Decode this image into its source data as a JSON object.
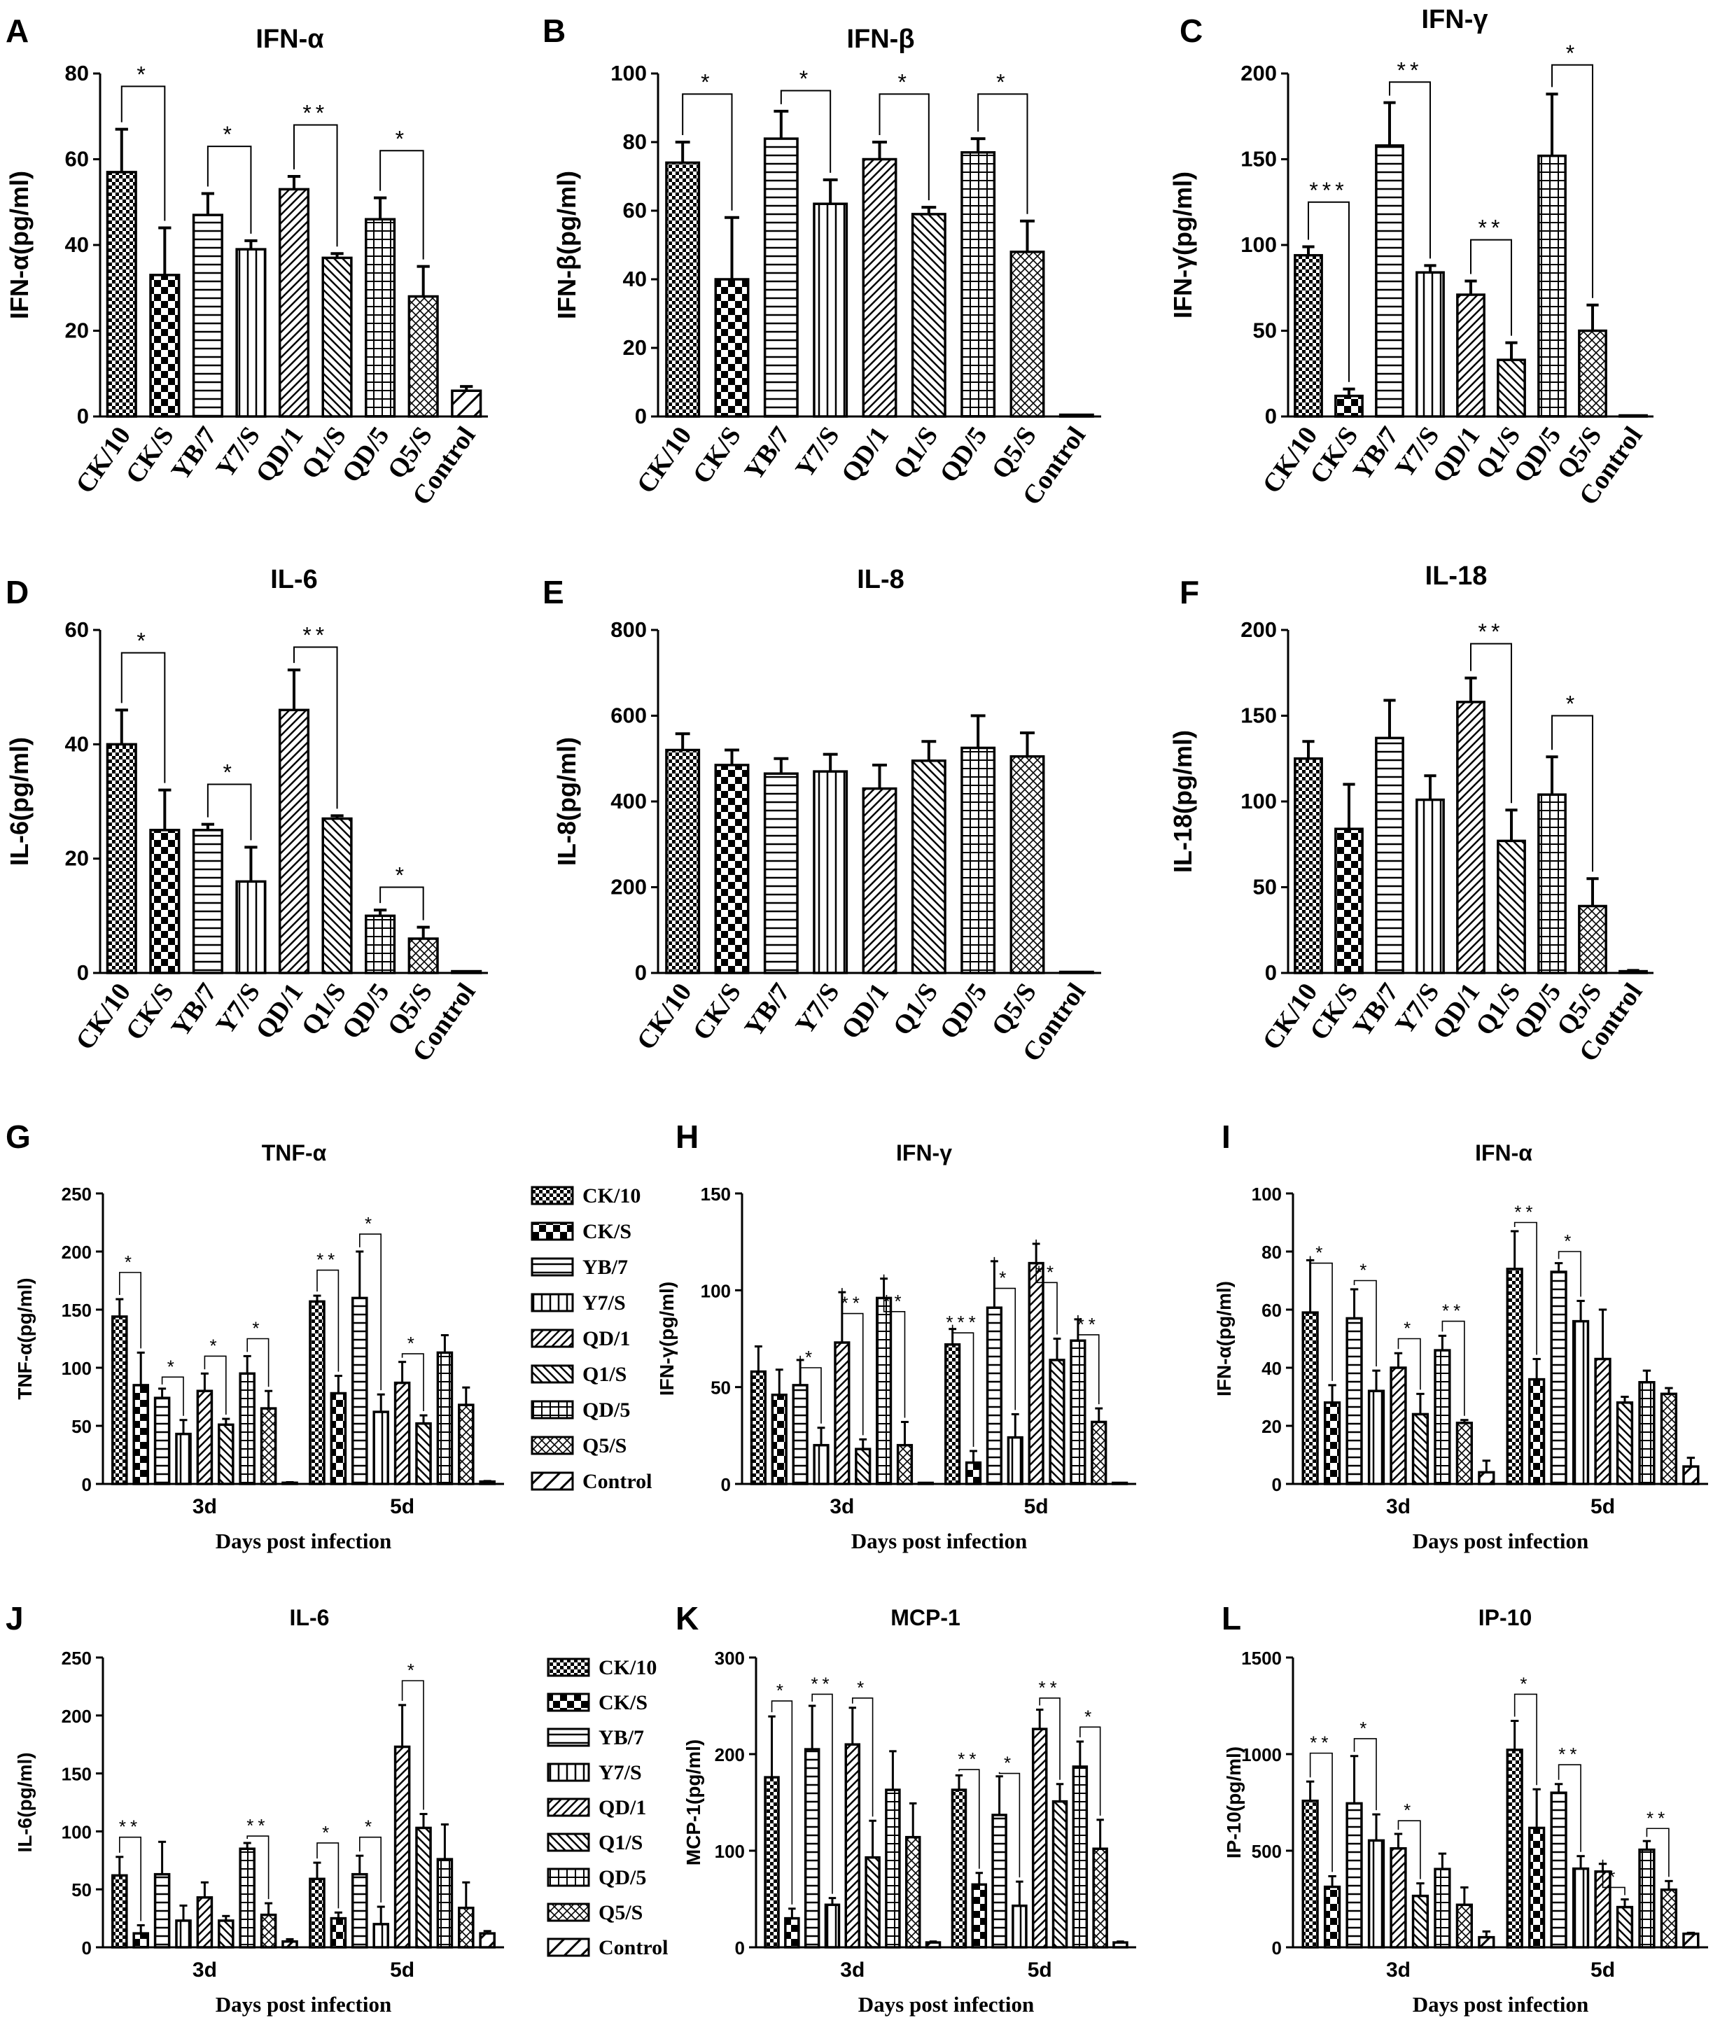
{
  "figure": {
    "categories": [
      "CK/10",
      "CK/S",
      "YB/7",
      "Y7/S",
      "QD/1",
      "Q1/S",
      "QD/5",
      "Q5/S",
      "Control"
    ],
    "groups": [
      "3d",
      "5d"
    ],
    "xlabel_time": "Days post infection",
    "legend": [
      "CK/10",
      "CK/S",
      "YB/7",
      "Y7/S",
      "QD/1",
      "Q1/S",
      "QD/5",
      "Q5/S",
      "Control"
    ]
  },
  "chart_data": [
    {
      "id": "A",
      "letter": "A",
      "type": "bar",
      "title": "IFN-α",
      "ylabel": "IFN-α(pg/ml)",
      "ylim": [
        0,
        80
      ],
      "yticks": [
        0,
        20,
        40,
        60,
        80
      ],
      "values": [
        57,
        33,
        47,
        39,
        53,
        37,
        46,
        28,
        6
      ],
      "errors": [
        10,
        11,
        5,
        2,
        3,
        1,
        5,
        7,
        1
      ],
      "sig": [
        {
          "from": 0,
          "to": 1,
          "label": "*",
          "y": 77
        },
        {
          "from": 2,
          "to": 3,
          "label": "*",
          "y": 63
        },
        {
          "from": 4,
          "to": 5,
          "label": "**",
          "y": 68
        },
        {
          "from": 6,
          "to": 7,
          "label": "*",
          "y": 62
        }
      ]
    },
    {
      "id": "B",
      "letter": "B",
      "type": "bar",
      "title": "IFN-β",
      "ylabel": "IFN-β(pg/ml)",
      "ylim": [
        0,
        100
      ],
      "yticks": [
        0,
        20,
        40,
        60,
        80,
        100
      ],
      "values": [
        74,
        40,
        81,
        62,
        75,
        59,
        77,
        48,
        0.5
      ],
      "errors": [
        6,
        18,
        8,
        7,
        5,
        2,
        4,
        9,
        0.2
      ],
      "sig": [
        {
          "from": 0,
          "to": 1,
          "label": "*",
          "y": 94
        },
        {
          "from": 2,
          "to": 3,
          "label": "*",
          "y": 95
        },
        {
          "from": 4,
          "to": 5,
          "label": "*",
          "y": 94
        },
        {
          "from": 6,
          "to": 7,
          "label": "*",
          "y": 94
        }
      ]
    },
    {
      "id": "C",
      "letter": "C",
      "type": "bar",
      "title": "IFN-γ",
      "ylabel": "IFN-γ(pg/ml)",
      "ylim": [
        0,
        200
      ],
      "yticks": [
        0,
        50,
        100,
        150,
        200
      ],
      "values": [
        94,
        12,
        158,
        84,
        71,
        33,
        152,
        50,
        0.5
      ],
      "errors": [
        5,
        4,
        25,
        4,
        8,
        10,
        36,
        15,
        0.2
      ],
      "sig": [
        {
          "from": 0,
          "to": 1,
          "label": "***",
          "y": 125
        },
        {
          "from": 2,
          "to": 3,
          "label": "**",
          "y": 195
        },
        {
          "from": 4,
          "to": 5,
          "label": "**",
          "y": 103
        },
        {
          "from": 6,
          "to": 7,
          "label": "*",
          "y": 205
        }
      ]
    },
    {
      "id": "D",
      "letter": "D",
      "type": "bar",
      "title": "IL-6",
      "ylabel": "IL-6(pg/ml)",
      "ylim": [
        0,
        60
      ],
      "yticks": [
        0,
        20,
        40,
        60
      ],
      "values": [
        40,
        25,
        25,
        16,
        46,
        27,
        10,
        6,
        0.3
      ],
      "errors": [
        6,
        7,
        1,
        6,
        7,
        0.5,
        1,
        2,
        0.1
      ],
      "sig": [
        {
          "from": 0,
          "to": 1,
          "label": "*",
          "y": 56
        },
        {
          "from": 2,
          "to": 3,
          "label": "*",
          "y": 33
        },
        {
          "from": 4,
          "to": 5,
          "label": "**",
          "y": 57
        },
        {
          "from": 6,
          "to": 7,
          "label": "*",
          "y": 15
        }
      ]
    },
    {
      "id": "E",
      "letter": "E",
      "type": "bar",
      "title": "IL-8",
      "ylabel": "IL-8(pg/ml)",
      "ylim": [
        0,
        800
      ],
      "yticks": [
        0,
        200,
        400,
        600,
        800
      ],
      "values": [
        520,
        485,
        465,
        470,
        430,
        495,
        525,
        505,
        0
      ],
      "errors": [
        38,
        35,
        35,
        40,
        55,
        45,
        75,
        55,
        0
      ],
      "sig": []
    },
    {
      "id": "F",
      "letter": "F",
      "type": "bar",
      "title": "IL-18",
      "ylabel": "IL-18(pg/ml)",
      "ylim": [
        0,
        200
      ],
      "yticks": [
        0,
        50,
        100,
        150,
        200
      ],
      "values": [
        125,
        84,
        137,
        101,
        158,
        77,
        104,
        39,
        1
      ],
      "errors": [
        10,
        26,
        22,
        14,
        14,
        18,
        22,
        16,
        0.5
      ],
      "sig": [
        {
          "from": 4,
          "to": 5,
          "label": "**",
          "y": 192
        },
        {
          "from": 6,
          "to": 7,
          "label": "*",
          "y": 150
        }
      ]
    },
    {
      "id": "G",
      "letter": "G",
      "type": "grouped-bar",
      "title": "TNF-α",
      "ylabel": "TNF-α(pg/ml)",
      "ylim": [
        0,
        250
      ],
      "yticks": [
        0,
        50,
        100,
        150,
        200,
        250
      ],
      "series_values": [
        [
          144,
          85,
          74,
          43,
          80,
          51,
          95,
          65,
          1
        ],
        [
          157,
          78,
          160,
          62,
          87,
          52,
          113,
          68,
          2
        ]
      ],
      "series_errors": [
        [
          15,
          28,
          8,
          12,
          15,
          5,
          15,
          15,
          0.5
        ],
        [
          5,
          15,
          40,
          15,
          18,
          7,
          15,
          15,
          0.5
        ]
      ],
      "sig": [
        [
          {
            "from": 0,
            "to": 1,
            "label": "*",
            "y": 182
          },
          {
            "from": 2,
            "to": 3,
            "label": "*",
            "y": 92
          },
          {
            "from": 4,
            "to": 5,
            "label": "*",
            "y": 110
          },
          {
            "from": 6,
            "to": 7,
            "label": "*",
            "y": 125
          }
        ],
        [
          {
            "from": 0,
            "to": 1,
            "label": "**",
            "y": 184
          },
          {
            "from": 2,
            "to": 3,
            "label": "*",
            "y": 215
          },
          {
            "from": 4,
            "to": 5,
            "label": "*",
            "y": 112
          }
        ]
      ]
    },
    {
      "id": "H",
      "letter": "H",
      "type": "grouped-bar",
      "title": "IFN-γ",
      "ylabel": "IFN-γ(pg/ml)",
      "ylim": [
        0,
        150
      ],
      "yticks": [
        0,
        50,
        100,
        150
      ],
      "series_values": [
        [
          58,
          46,
          51,
          20,
          73,
          18,
          96,
          20,
          0.5
        ],
        [
          72,
          11,
          91,
          24,
          114,
          64,
          74,
          32,
          0.5
        ]
      ],
      "series_errors": [
        [
          13,
          13,
          13,
          9,
          26,
          5,
          10,
          12,
          0.2
        ],
        [
          8,
          6,
          24,
          12,
          10,
          11,
          11,
          7,
          0.2
        ]
      ],
      "sig": [
        [
          {
            "from": 2,
            "to": 3,
            "label": "*",
            "y": 60
          },
          {
            "from": 4,
            "to": 5,
            "label": "**",
            "y": 88
          },
          {
            "from": 6,
            "to": 7,
            "label": "**",
            "y": 89
          }
        ],
        [
          {
            "from": 0,
            "to": 1,
            "label": "***",
            "y": 78
          },
          {
            "from": 2,
            "to": 3,
            "label": "*",
            "y": 101
          },
          {
            "from": 4,
            "to": 5,
            "label": "**",
            "y": 104
          },
          {
            "from": 6,
            "to": 7,
            "label": "**",
            "y": 77
          }
        ]
      ]
    },
    {
      "id": "I",
      "letter": "I",
      "type": "grouped-bar",
      "title": "IFN-α",
      "ylabel": "IFN-α(pg/ml)",
      "ylim": [
        0,
        100
      ],
      "yticks": [
        0,
        20,
        40,
        60,
        80,
        100
      ],
      "series_values": [
        [
          59,
          28,
          57,
          32,
          40,
          24,
          46,
          21,
          4
        ],
        [
          74,
          36,
          73,
          56,
          43,
          28,
          35,
          31,
          6
        ]
      ],
      "series_errors": [
        [
          18,
          6,
          10,
          7,
          5,
          7,
          5,
          1,
          4
        ],
        [
          13,
          7,
          3,
          7,
          17,
          2,
          4,
          2,
          3
        ]
      ],
      "sig": [
        [
          {
            "from": 0,
            "to": 1,
            "label": "*",
            "y": 76
          },
          {
            "from": 2,
            "to": 3,
            "label": "*",
            "y": 70
          },
          {
            "from": 4,
            "to": 5,
            "label": "*",
            "y": 50
          },
          {
            "from": 6,
            "to": 7,
            "label": "**",
            "y": 56
          }
        ],
        [
          {
            "from": 0,
            "to": 1,
            "label": "**",
            "y": 90
          },
          {
            "from": 2,
            "to": 3,
            "label": "*",
            "y": 80
          }
        ]
      ]
    },
    {
      "id": "J",
      "letter": "J",
      "type": "grouped-bar",
      "title": "IL-6",
      "ylabel": "IL-6(pg/ml)",
      "ylim": [
        0,
        250
      ],
      "yticks": [
        0,
        50,
        100,
        150,
        200,
        250
      ],
      "series_values": [
        [
          62,
          12,
          63,
          23,
          43,
          23,
          85,
          28,
          5
        ],
        [
          59,
          25,
          63,
          20,
          173,
          103,
          76,
          34,
          12
        ]
      ],
      "series_errors": [
        [
          16,
          7,
          28,
          13,
          13,
          4,
          5,
          10,
          2
        ],
        [
          14,
          5,
          16,
          15,
          36,
          12,
          30,
          22,
          2
        ]
      ],
      "sig": [
        [
          {
            "from": 0,
            "to": 1,
            "label": "**",
            "y": 95
          },
          {
            "from": 6,
            "to": 7,
            "label": "**",
            "y": 96
          }
        ],
        [
          {
            "from": 0,
            "to": 1,
            "label": "*",
            "y": 90
          },
          {
            "from": 2,
            "to": 3,
            "label": "*",
            "y": 95
          },
          {
            "from": 4,
            "to": 5,
            "label": "*",
            "y": 230
          }
        ]
      ]
    },
    {
      "id": "K",
      "letter": "K",
      "type": "grouped-bar",
      "title": "MCP-1",
      "ylabel": "MCP-1(pg/ml)",
      "ylim": [
        0,
        300
      ],
      "yticks": [
        0,
        100,
        200,
        300
      ],
      "series_values": [
        [
          176,
          30,
          205,
          44,
          210,
          93,
          163,
          114,
          5
        ],
        [
          163,
          65,
          137,
          43,
          226,
          151,
          187,
          102,
          5
        ]
      ],
      "series_errors": [
        [
          63,
          10,
          45,
          7,
          38,
          38,
          40,
          35,
          1
        ],
        [
          15,
          12,
          40,
          25,
          20,
          18,
          26,
          30,
          1
        ]
      ],
      "sig": [
        [
          {
            "from": 0,
            "to": 1,
            "label": "*",
            "y": 255
          },
          {
            "from": 2,
            "to": 3,
            "label": "**",
            "y": 262
          },
          {
            "from": 4,
            "to": 5,
            "label": "*",
            "y": 258
          }
        ],
        [
          {
            "from": 0,
            "to": 1,
            "label": "**",
            "y": 184
          },
          {
            "from": 2,
            "to": 3,
            "label": "*",
            "y": 180
          },
          {
            "from": 4,
            "to": 5,
            "label": "**",
            "y": 258
          },
          {
            "from": 6,
            "to": 7,
            "label": "*",
            "y": 228
          }
        ]
      ]
    },
    {
      "id": "L",
      "letter": "L",
      "type": "grouped-bar",
      "title": "IP-10",
      "ylabel": "IP-10(pg/ml)",
      "ylim": [
        0,
        1500
      ],
      "yticks": [
        0,
        500,
        1000,
        1500
      ],
      "series_values": [
        [
          758,
          313,
          745,
          553,
          512,
          266,
          405,
          220,
          52
        ],
        [
          1022,
          618,
          800,
          407,
          392,
          208,
          505,
          298,
          70
        ]
      ],
      "series_errors": [
        [
          100,
          55,
          245,
          135,
          75,
          65,
          80,
          90,
          30
        ],
        [
          150,
          200,
          45,
          65,
          40,
          40,
          45,
          45,
          5
        ]
      ],
      "sig": [
        [
          {
            "from": 0,
            "to": 1,
            "label": "**",
            "y": 1005
          },
          {
            "from": 2,
            "to": 3,
            "label": "*",
            "y": 1080
          },
          {
            "from": 4,
            "to": 5,
            "label": "*",
            "y": 655
          }
        ],
        [
          {
            "from": 0,
            "to": 1,
            "label": "*",
            "y": 1310
          },
          {
            "from": 2,
            "to": 3,
            "label": "**",
            "y": 945
          },
          {
            "from": 4,
            "to": 5,
            "label": "*",
            "y": 310
          },
          {
            "from": 6,
            "to": 7,
            "label": "**",
            "y": 615
          }
        ]
      ]
    }
  ]
}
